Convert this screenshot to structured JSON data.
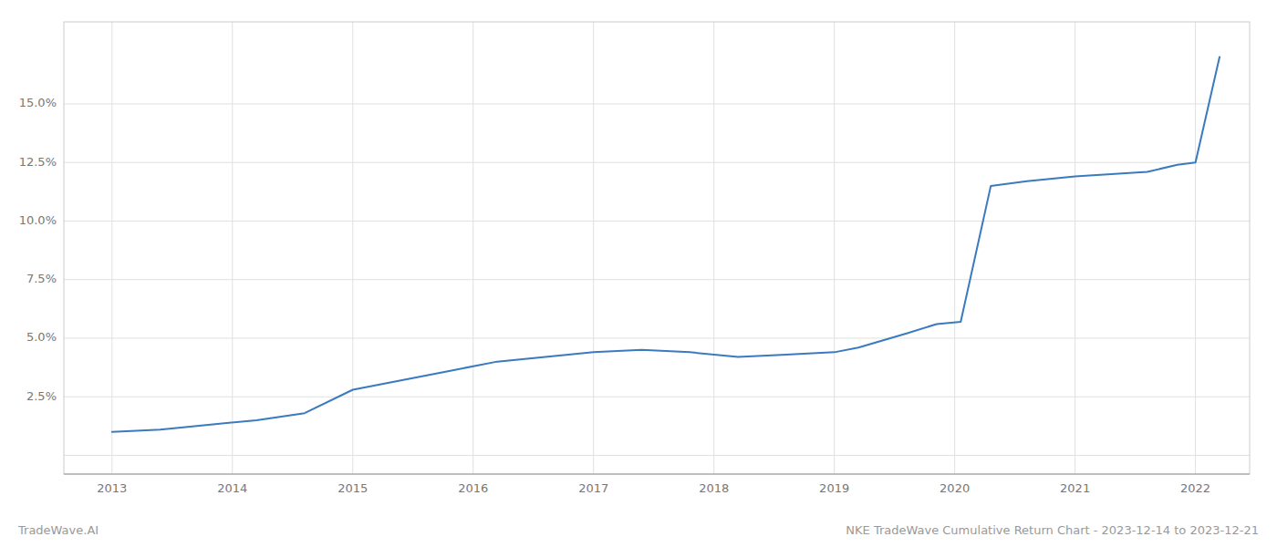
{
  "chart_data": {
    "type": "line",
    "x": [
      2013.0,
      2013.4,
      2013.8,
      2014.2,
      2014.6,
      2015.0,
      2015.4,
      2015.8,
      2016.2,
      2016.6,
      2017.0,
      2017.4,
      2017.8,
      2018.2,
      2018.6,
      2019.0,
      2019.2,
      2019.6,
      2019.85,
      2020.05,
      2020.3,
      2020.6,
      2021.0,
      2021.3,
      2021.6,
      2021.85,
      2022.0,
      2022.2
    ],
    "values": [
      0.01,
      0.011,
      0.013,
      0.015,
      0.018,
      0.028,
      0.032,
      0.036,
      0.04,
      0.042,
      0.044,
      0.045,
      0.044,
      0.042,
      0.043,
      0.044,
      0.046,
      0.052,
      0.056,
      0.057,
      0.115,
      0.117,
      0.119,
      0.12,
      0.121,
      0.124,
      0.125,
      0.17
    ],
    "color": "#3a7abf",
    "xlim": [
      2012.6,
      2022.45
    ],
    "ylim": [
      -0.008,
      0.185
    ],
    "xticks": [
      2013,
      2014,
      2015,
      2016,
      2017,
      2018,
      2019,
      2020,
      2021,
      2022
    ],
    "yticks": [
      {
        "value": 0.0,
        "label": null
      },
      {
        "value": 0.025,
        "label": "2.5%"
      },
      {
        "value": 0.05,
        "label": "5.0%"
      },
      {
        "value": 0.075,
        "label": "7.5%"
      },
      {
        "value": 0.1,
        "label": "10.0%"
      },
      {
        "value": 0.125,
        "label": "12.5%"
      },
      {
        "value": 0.15,
        "label": "15.0%"
      }
    ],
    "grid": true,
    "annotations": [
      "TradeWave.AI",
      "NKE TradeWave Cumulative Return Chart - 2023-12-14 to 2023-12-21"
    ]
  }
}
